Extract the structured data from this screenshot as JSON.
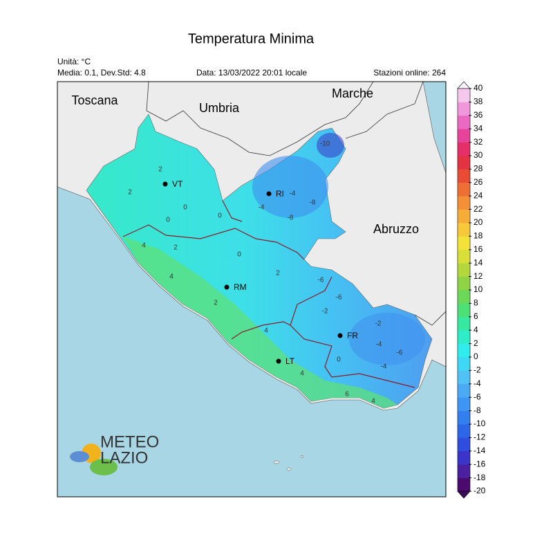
{
  "header": {
    "title": "Temperatura Minima",
    "unit": "Unità: °C",
    "stats": "Media: 0.1, Dev.Std: 4.8",
    "date": "Data: 13/03/2022 20:01 locale",
    "stations": "Stazioni online: 264"
  },
  "regions": [
    "Toscana",
    "Umbria",
    "Marche",
    "Abruzzo"
  ],
  "cities": [
    "VT",
    "RI",
    "RM",
    "FR",
    "LT"
  ],
  "contour_labels": [
    2,
    0,
    2,
    0,
    2,
    4,
    4,
    2,
    0,
    -4,
    -8,
    -10,
    -4,
    -6,
    -8,
    -2,
    -6,
    -2,
    -4,
    -6,
    -4,
    0,
    4,
    4,
    6,
    4,
    2,
    0
  ],
  "logo": {
    "line1": "METEO",
    "line2": "LAZIO"
  },
  "colorbar": {
    "ticks": [
      40,
      38,
      36,
      34,
      32,
      30,
      28,
      26,
      24,
      22,
      20,
      18,
      16,
      14,
      12,
      10,
      8,
      6,
      4,
      2,
      0,
      -2,
      -4,
      -6,
      -8,
      -10,
      -12,
      -14,
      -16,
      -18,
      -20
    ],
    "colors": [
      "#4b0b6e",
      "#4a1fa0",
      "#3b34c8",
      "#2f4ee0",
      "#2e66e8",
      "#347ff0",
      "#3e95f2",
      "#4aabf4",
      "#4fc3f6",
      "#3fd8f4",
      "#30ecec",
      "#2fedc8",
      "#37e8a0",
      "#4ce077",
      "#6cd85a",
      "#90d446",
      "#b4d83c",
      "#d8df38",
      "#f2e23a",
      "#f7c93a",
      "#f6ac38",
      "#f38f37",
      "#ee6f36",
      "#e84c35",
      "#e33242",
      "#e52f6a",
      "#e8439a",
      "#ec69c3",
      "#f197dc",
      "#f7c8ee"
    ]
  }
}
